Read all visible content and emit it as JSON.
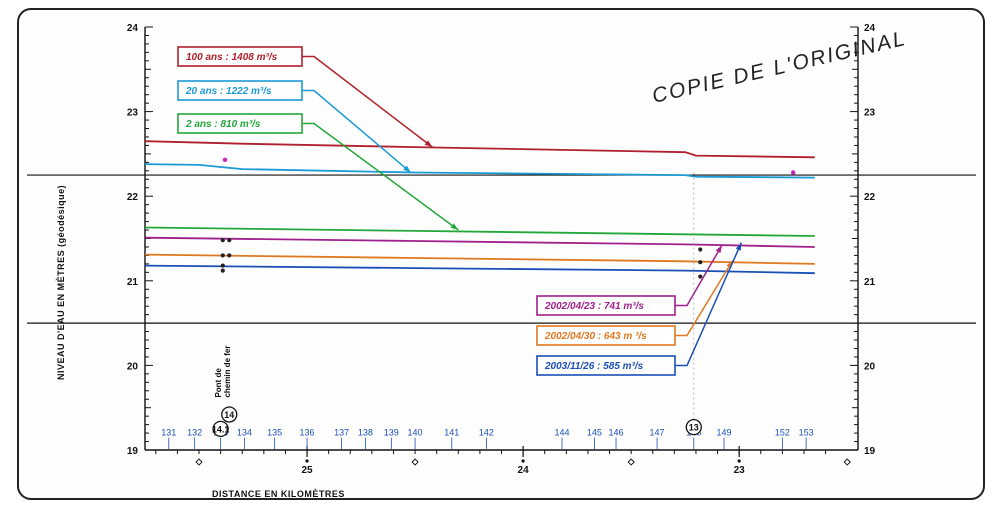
{
  "stamp": "COPIE DE L'ORIGINAL",
  "chart_data": {
    "type": "line",
    "ylabel": "NIVEAU D'EAU EN MÈTRES (géodésique)",
    "xlabel": "DISTANCE EN KILOMÈTRES",
    "ylim": [
      19,
      24
    ],
    "xlim": [
      25.75,
      22.45
    ],
    "y_ticks": [
      "19",
      "20",
      "21",
      "22",
      "23",
      "24"
    ],
    "x_ticks": [
      {
        "value": 25,
        "label": "25"
      },
      {
        "value": 24,
        "label": "24"
      },
      {
        "value": 23,
        "label": "23"
      }
    ],
    "x_minor_diamonds": [
      25.5,
      24.5,
      23.5,
      22.5
    ],
    "reference_lines": [
      22.25,
      20.5
    ],
    "series": [
      {
        "name": "100 ans : 1408 m³/s",
        "color": "#b0202c",
        "x": [
          25.75,
          25.3,
          24.5,
          23.25,
          23.2,
          22.65
        ],
        "y": [
          22.65,
          22.62,
          22.58,
          22.52,
          22.48,
          22.46
        ]
      },
      {
        "name": "20 ans : 1222 m³/s",
        "color": "#1a9ad6",
        "x": [
          25.75,
          25.5,
          25.3,
          24.5,
          23.25,
          23.2,
          22.65
        ],
        "y": [
          22.38,
          22.37,
          22.32,
          22.28,
          22.25,
          22.23,
          22.22
        ]
      },
      {
        "name": "2 ans : 810 m³/s",
        "color": "#22a83a",
        "x": [
          25.75,
          24.5,
          23.25,
          22.65
        ],
        "y": [
          21.63,
          21.59,
          21.55,
          21.53
        ]
      },
      {
        "name": "2002/04/23 : 741 m³/s",
        "color": "#a0208c",
        "x": [
          25.75,
          24.5,
          23.25,
          22.65
        ],
        "y": [
          21.51,
          21.47,
          21.43,
          21.4
        ]
      },
      {
        "name": "2002/04/30 : 643 m ³/s",
        "color": "#e07820",
        "x": [
          25.75,
          24.5,
          23.25,
          22.65
        ],
        "y": [
          21.31,
          21.27,
          21.23,
          21.2
        ]
      },
      {
        "name": "2003/11/26 : 585 m³/s",
        "color": "#1a4fb8",
        "x": [
          25.75,
          24.5,
          23.25,
          22.65
        ],
        "y": [
          21.18,
          21.15,
          21.12,
          21.09
        ]
      }
    ],
    "observed_points": [
      {
        "x": 25.39,
        "y": 21.48
      },
      {
        "x": 25.36,
        "y": 21.48
      },
      {
        "x": 25.39,
        "y": 21.3
      },
      {
        "x": 25.36,
        "y": 21.3
      },
      {
        "x": 25.39,
        "y": 21.18
      },
      {
        "x": 25.39,
        "y": 21.12
      },
      {
        "x": 23.18,
        "y": 21.37
      },
      {
        "x": 23.18,
        "y": 21.22
      },
      {
        "x": 23.18,
        "y": 21.05
      }
    ],
    "magenta_points": [
      {
        "x": 25.38,
        "y": 22.43
      },
      {
        "x": 22.75,
        "y": 22.28
      }
    ],
    "sections": [
      {
        "label": "131",
        "x": 25.64
      },
      {
        "label": "132",
        "x": 25.52
      },
      {
        "label": "133",
        "x": 25.4
      },
      {
        "label": "134",
        "x": 25.29
      },
      {
        "label": "135",
        "x": 25.15
      },
      {
        "label": "136",
        "x": 25.0
      },
      {
        "label": "137",
        "x": 24.84
      },
      {
        "label": "138",
        "x": 24.73
      },
      {
        "label": "139",
        "x": 24.61
      },
      {
        "label": "140",
        "x": 24.5
      },
      {
        "label": "141",
        "x": 24.33
      },
      {
        "label": "142",
        "x": 24.17
      },
      {
        "label": "144",
        "x": 23.82
      },
      {
        "label": "145",
        "x": 23.67
      },
      {
        "label": "146",
        "x": 23.57
      },
      {
        "label": "147",
        "x": 23.38
      },
      {
        "label": "148",
        "x": 23.21
      },
      {
        "label": "149",
        "x": 23.07
      },
      {
        "label": "152",
        "x": 22.8
      },
      {
        "label": "153",
        "x": 22.69
      }
    ],
    "markers": [
      {
        "label": "14",
        "x": 25.36,
        "y": 19.42
      },
      {
        "label": "14.1",
        "x": 25.4,
        "y": 19.25
      },
      {
        "label": "13",
        "x": 23.21,
        "y": 19.27
      }
    ],
    "bridge_label": [
      "Pont de",
      "chemin de fer"
    ]
  },
  "legend_boxes": [
    {
      "text": "100 ans : 1408 m³/s",
      "color": "#b0202c",
      "target": {
        "x": 24.42,
        "y": 22.58
      }
    },
    {
      "text": "20 ans : 1222 m³/s",
      "color": "#1a9ad6",
      "target": {
        "x": 24.52,
        "y": 22.28
      }
    },
    {
      "text": "2 ans : 810 m³/s",
      "color": "#22a83a",
      "target": {
        "x": 24.3,
        "y": 21.6
      }
    },
    {
      "text": "2002/04/23 : 741 m³/s",
      "color": "#a0208c",
      "target": {
        "x": 23.08,
        "y": 21.42
      }
    },
    {
      "text": "2002/04/30 : 643 m ³/s",
      "color": "#e07820",
      "target": {
        "x": 23.03,
        "y": 21.24
      }
    },
    {
      "text": "2003/11/26 : 585 m³/s",
      "color": "#1a4fb8",
      "target": {
        "x": 22.99,
        "y": 21.45
      }
    }
  ]
}
